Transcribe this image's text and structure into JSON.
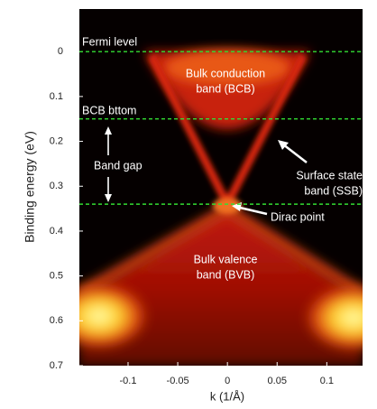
{
  "chart_data": {
    "type": "heatmap-image",
    "x_label": "k (1/Å)",
    "y_label": "Binding energy (eV)",
    "xlim": [
      -0.149,
      0.136
    ],
    "ylim": [
      0.7,
      -0.095
    ],
    "xticks": [
      -0.1,
      -0.05,
      0,
      0.05,
      0.1
    ],
    "yticks": [
      0,
      0.1,
      0.2,
      0.3,
      0.4,
      0.5,
      0.6,
      0.7
    ],
    "reference_lines": {
      "values": [
        0,
        0.15,
        0.34
      ],
      "color": "#33dd33",
      "style": "dashed"
    },
    "annotations": [
      {
        "lines": [
          "Fermi level"
        ]
      },
      {
        "lines": [
          "BCB bttom"
        ]
      },
      {
        "lines": [
          "Band gap"
        ]
      },
      {
        "lines": [
          "Bulk conduction",
          "band (BCB)"
        ]
      },
      {
        "lines": [
          "Surface state",
          "band (SSB)"
        ]
      },
      {
        "lines": [
          "Dirac point"
        ]
      },
      {
        "lines": [
          "Bulk valence",
          "band (BVB)"
        ]
      }
    ]
  }
}
